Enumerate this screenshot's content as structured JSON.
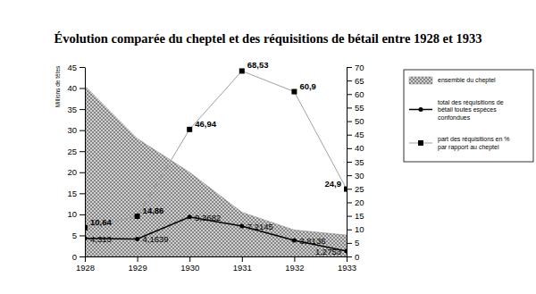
{
  "chart_data": {
    "type": "line",
    "title": "Évolution comparée du cheptel et des réquisitions de bétail entre 1928 et 1933",
    "y_label": "Millions de têtes",
    "x": [
      1928,
      1929,
      1930,
      1931,
      1932,
      1933
    ],
    "xlim": [
      1928,
      1933
    ],
    "xticks": [
      1928,
      1929,
      1930,
      1931,
      1932,
      1933
    ],
    "ylim": [
      0,
      45
    ],
    "yticks": [
      0,
      5,
      10,
      15,
      20,
      25,
      30,
      35,
      40,
      45
    ],
    "y2lim": [
      0,
      70
    ],
    "y2ticks": [
      0,
      5,
      10,
      15,
      20,
      25,
      30,
      35,
      40,
      45,
      50,
      55,
      60,
      65,
      70
    ],
    "legend": "right",
    "series": [
      {
        "name": "ensemble du cheptel",
        "type": "area",
        "color": "#d0d0d0",
        "values": [
          40.5,
          28,
          20,
          10.5,
          6.3,
          5.1
        ]
      },
      {
        "name": "total des réquisitions de bétail toutes espèces confondues",
        "type": "line",
        "color": "#000000",
        "marker": "circle",
        "data_labels": true,
        "values": [
          4.313,
          4.1639,
          9.3682,
          7.2145,
          3.8136,
          1.2753
        ],
        "value_labels": [
          "4,313",
          "4,1639",
          "9,3682",
          "7,2145",
          "3,8136",
          "1,2753"
        ]
      },
      {
        "name": "part des réquisitions en % par rapport au cheptel",
        "type": "line",
        "color": "#a0a0a0",
        "marker": "square",
        "axis": "y2",
        "data_labels": true,
        "values": [
          10.64,
          14.86,
          46.94,
          68.53,
          60.9,
          24.9
        ],
        "value_labels": [
          "10,64",
          "14,86",
          "46,94",
          "68,53",
          "60,9",
          "24,9"
        ]
      }
    ]
  }
}
